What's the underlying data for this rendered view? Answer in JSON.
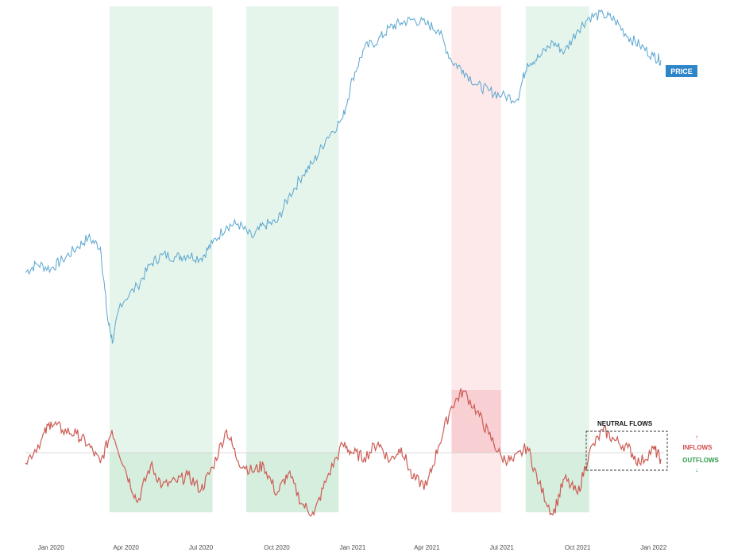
{
  "chart_data": {
    "type": "line",
    "title": "",
    "xlabel": "",
    "ylabel": "",
    "grid": false,
    "x_range": [
      "2019-12-01",
      "2022-01-31"
    ],
    "x_ticks": [
      "Jan 2020",
      "Apr 2020",
      "Jul 2020",
      "Oct 2020",
      "Jan 2021",
      "Apr 2021",
      "Jul 2021",
      "Oct 2021",
      "Jan 2022"
    ],
    "series": [
      {
        "name": "PRICE",
        "color": "#5aa6d0",
        "x": [
          "2019-12-01",
          "2019-12-15",
          "2020-01-01",
          "2020-01-15",
          "2020-02-01",
          "2020-02-15",
          "2020-03-01",
          "2020-03-10",
          "2020-03-16",
          "2020-03-25",
          "2020-04-15",
          "2020-05-01",
          "2020-05-15",
          "2020-06-01",
          "2020-06-15",
          "2020-07-01",
          "2020-07-15",
          "2020-08-01",
          "2020-08-15",
          "2020-09-01",
          "2020-09-15",
          "2020-10-01",
          "2020-10-15",
          "2020-11-01",
          "2020-11-15",
          "2020-12-01",
          "2020-12-20",
          "2021-01-01",
          "2021-01-15",
          "2021-02-01",
          "2021-02-15",
          "2021-03-01",
          "2021-03-15",
          "2021-04-01",
          "2021-04-15",
          "2021-05-01",
          "2021-05-15",
          "2021-06-01",
          "2021-06-15",
          "2021-07-01",
          "2021-07-20",
          "2021-08-01",
          "2021-08-15",
          "2021-09-01",
          "2021-09-15",
          "2021-10-01",
          "2021-10-15",
          "2021-11-01",
          "2021-11-15",
          "2021-12-01",
          "2021-12-15",
          "2022-01-01",
          "2022-01-10"
        ],
        "values": [
          250,
          262,
          255,
          268,
          285,
          300,
          286,
          180,
          150,
          205,
          230,
          262,
          275,
          272,
          275,
          270,
          292,
          317,
          320,
          300,
          318,
          322,
          358,
          390,
          410,
          445,
          472,
          530,
          573,
          585,
          603,
          610,
          615,
          608,
          600,
          555,
          542,
          520,
          512,
          505,
          500,
          552,
          560,
          582,
          568,
          600,
          618,
          622,
          614,
          590,
          578,
          562,
          556
        ]
      },
      {
        "name": "FLOWS",
        "color": "#cd5c55",
        "x": [
          "2019-12-01",
          "2019-12-20",
          "2020-01-01",
          "2020-01-15",
          "2020-02-01",
          "2020-02-15",
          "2020-03-01",
          "2020-03-15",
          "2020-04-01",
          "2020-04-15",
          "2020-05-01",
          "2020-05-15",
          "2020-06-01",
          "2020-06-15",
          "2020-07-01",
          "2020-07-15",
          "2020-08-01",
          "2020-08-15",
          "2020-09-01",
          "2020-09-15",
          "2020-10-01",
          "2020-10-15",
          "2020-11-01",
          "2020-11-15",
          "2020-12-01",
          "2020-12-20",
          "2021-01-01",
          "2021-01-15",
          "2021-02-01",
          "2021-02-15",
          "2021-03-01",
          "2021-03-15",
          "2021-04-01",
          "2021-04-15",
          "2021-05-01",
          "2021-05-15",
          "2021-06-01",
          "2021-06-15",
          "2021-07-01",
          "2021-07-15",
          "2021-08-01",
          "2021-08-15",
          "2021-09-01",
          "2021-09-15",
          "2021-10-01",
          "2021-10-15",
          "2021-11-01",
          "2021-11-15",
          "2021-12-01",
          "2021-12-15",
          "2022-01-01",
          "2022-01-10"
        ],
        "values": [
          -10,
          12,
          30,
          22,
          18,
          8,
          -10,
          22,
          -18,
          -48,
          -12,
          -32,
          -28,
          -22,
          -36,
          -14,
          22,
          -8,
          -18,
          -12,
          -40,
          -20,
          -50,
          -60,
          -24,
          8,
          0,
          -5,
          10,
          -8,
          5,
          -25,
          -32,
          6,
          45,
          60,
          40,
          18,
          -5,
          -8,
          6,
          -30,
          -60,
          -25,
          -40,
          0,
          22,
          12,
          5,
          -10,
          4,
          -6
        ]
      }
    ],
    "annotations": {
      "price_label": "PRICE",
      "neutral_flows": "NEUTRAL FLOWS",
      "inflows": "INFLOWS",
      "outflows": "OUTFLOWS",
      "inflow_arrow": "↑",
      "outflow_arrow": "↓"
    },
    "shaded_periods": [
      {
        "start": "2020-03-12",
        "end": "2020-07-15",
        "type": "outflows",
        "color": "#e6f5eb"
      },
      {
        "start": "2020-08-25",
        "end": "2020-12-15",
        "type": "outflows",
        "color": "#e6f5eb"
      },
      {
        "start": "2021-05-01",
        "end": "2021-06-30",
        "type": "inflows",
        "color": "#fde8ea"
      },
      {
        "start": "2021-07-30",
        "end": "2021-10-15",
        "type": "outflows",
        "color": "#e6f5eb"
      }
    ],
    "neutral_period": {
      "start": "2021-10-15",
      "end": "2022-01-10"
    },
    "colors": {
      "price": "#5aa6d0",
      "flows": "#cd5c55",
      "inflows_text": "#d24b4b",
      "outflows_text": "#2e9a48",
      "price_tag": "#2e86c9"
    }
  }
}
